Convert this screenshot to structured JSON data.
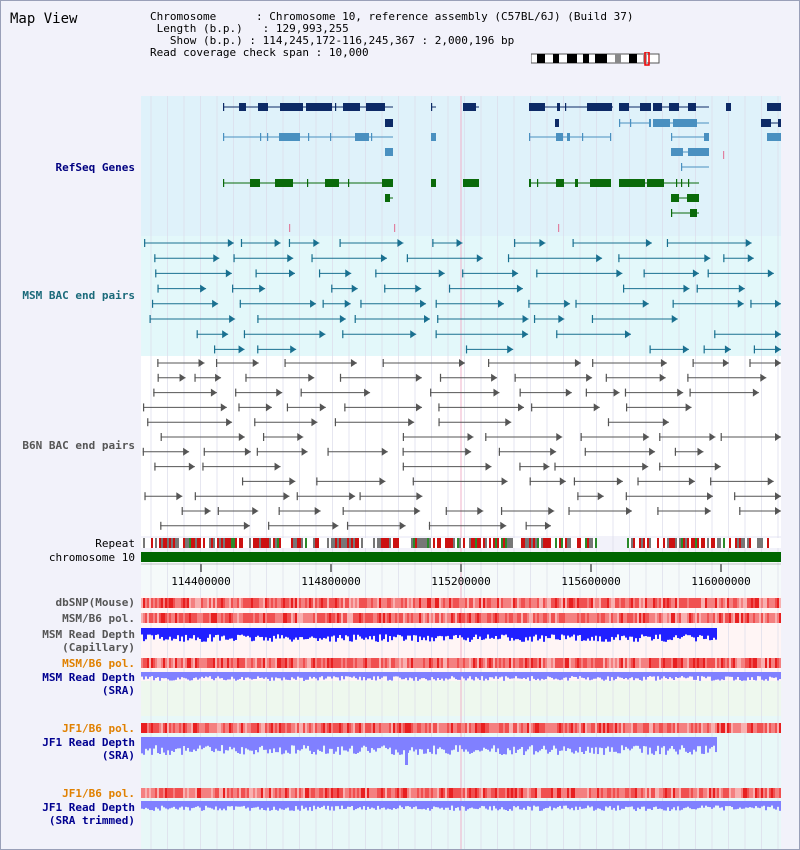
{
  "title": "Map View",
  "info": {
    "chromosome_label": "Chromosome",
    "chromosome_value": "Chromosome 10, reference assembly (C57BL/6J) (Build 37)",
    "length_label": "Length (b.p.)",
    "length_value": "129,993,255",
    "show_label": "Show (b.p.)",
    "show_value": "114,245,172-116,245,367 : 2,000,196 bp",
    "coverage_label": "Read coverage check span",
    "coverage_value": "10,000"
  },
  "tracks": {
    "refseq": "RefSeq Genes",
    "msm_bac": "MSM BAC end pairs",
    "b6n_bac": "B6N BAC end pairs",
    "repeat": "Repeat",
    "chromosome": "chromosome 10",
    "dbsnp": "dbSNP(Mouse)",
    "msm_b6_pol": "MSM/B6 pol.",
    "msm_read_depth_cap_1": "MSM Read Depth",
    "msm_read_depth_cap_2": "(Capillary)",
    "msm_b6_pol_sra": "MSM/B6 pol.",
    "msm_read_depth_sra_1": "MSM Read Depth",
    "msm_read_depth_sra_2": "(SRA)",
    "jf1_b6_pol": "JF1/B6 pol.",
    "jf1_read_depth_1": "JF1 Read Depth",
    "jf1_read_depth_2": "(SRA)",
    "jf1_b6_pol_trim": "JF1/B6 pol.",
    "jf1_read_depth_trim_1": "JF1 Read Depth",
    "jf1_read_depth_trim_2": "(SRA trimmed)"
  },
  "axis": {
    "ticks": [
      "114400000",
      "114800000",
      "115200000",
      "115600000",
      "116000000"
    ]
  },
  "colors": {
    "refseq_bg": "#dff2fa",
    "msm_bg": "#e3f8fa",
    "gene_dark": "#0d2a66",
    "gene_mid": "#4a90c0",
    "gene_green": "#0a6a0a",
    "msm_line": "#1a7090",
    "b6n_line": "#555555",
    "chromosome_bar": "#006600",
    "depth_blue": "#2020ff",
    "depth_light": "#8080ff"
  }
}
